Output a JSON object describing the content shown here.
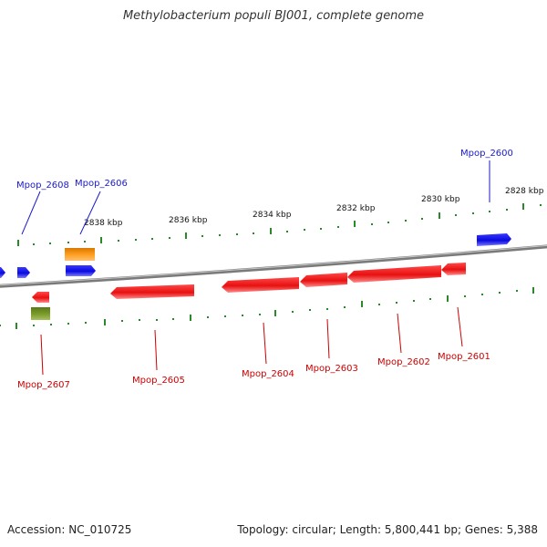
{
  "title": "Methylobacterium populi BJ001, complete genome",
  "footer": {
    "accession": "Accession: NC_010725",
    "summary": "Topology: circular; Length: 5,800,441 bp; Genes: 5,388"
  },
  "colors": {
    "backbone": "#8a8a8a",
    "reverse_strand": "#ee1111",
    "forward_strand": "#1111ee",
    "orange_feature": "#f39a1a",
    "olive_feature": "#6f8f28",
    "tick": "#2a8a2a",
    "label_red": "#cc0000",
    "label_blue": "#1a1acc"
  },
  "scale_labels": [
    "2838 kbp",
    "2836 kbp",
    "2834 kbp",
    "2832 kbp",
    "2830 kbp",
    "2828 kbp"
  ],
  "gene_labels": {
    "mpop_2600": "Mpop_2600",
    "mpop_2601": "Mpop_2601",
    "mpop_2602": "Mpop_2602",
    "mpop_2603": "Mpop_2603",
    "mpop_2604": "Mpop_2604",
    "mpop_2605": "Mpop_2605",
    "mpop_2606": "Mpop_2606",
    "mpop_2607": "Mpop_2607",
    "mpop_2608": "Mpop_2608"
  }
}
